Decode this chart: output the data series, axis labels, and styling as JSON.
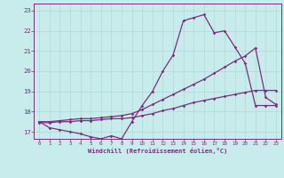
{
  "xlabel": "Windchill (Refroidissement éolien,°C)",
  "bg_color": "#c8ecec",
  "line_color": "#7b2d7b",
  "grid_color": "#b0d8d8",
  "xlim_min": -0.5,
  "xlim_max": 23.5,
  "ylim_min": 16.65,
  "ylim_max": 23.35,
  "x_ticks": [
    0,
    1,
    2,
    3,
    4,
    5,
    6,
    7,
    8,
    9,
    10,
    11,
    12,
    13,
    14,
    15,
    16,
    17,
    18,
    19,
    20,
    21,
    22,
    23
  ],
  "y_ticks": [
    17,
    18,
    19,
    20,
    21,
    22,
    23
  ],
  "line1_x": [
    0,
    1,
    2,
    3,
    4,
    5,
    6,
    7,
    8,
    9,
    10,
    11,
    12,
    13,
    14,
    15,
    16,
    17,
    18,
    19,
    20,
    21,
    22,
    23
  ],
  "line1_y": [
    17.5,
    17.2,
    17.1,
    17.0,
    16.9,
    16.75,
    16.65,
    16.8,
    16.65,
    17.5,
    18.3,
    19.0,
    20.0,
    20.8,
    22.5,
    22.65,
    22.8,
    21.9,
    22.0,
    21.2,
    20.4,
    18.3,
    18.3,
    18.3
  ],
  "line2_x": [
    0,
    1,
    2,
    3,
    4,
    5,
    6,
    7,
    8,
    9,
    10,
    11,
    12,
    13,
    14,
    15,
    16,
    17,
    18,
    19,
    20,
    21,
    22,
    23
  ],
  "line2_y": [
    17.45,
    17.45,
    17.5,
    17.5,
    17.55,
    17.55,
    17.6,
    17.65,
    17.65,
    17.7,
    17.8,
    17.9,
    18.05,
    18.15,
    18.3,
    18.45,
    18.55,
    18.65,
    18.75,
    18.85,
    18.95,
    19.05,
    19.05,
    19.05
  ],
  "line3_x": [
    0,
    1,
    2,
    3,
    4,
    5,
    6,
    7,
    8,
    9,
    10,
    11,
    12,
    13,
    14,
    15,
    16,
    17,
    18,
    19,
    20,
    21,
    22,
    23
  ],
  "line3_y": [
    17.5,
    17.5,
    17.55,
    17.6,
    17.65,
    17.65,
    17.7,
    17.75,
    17.8,
    17.9,
    18.1,
    18.35,
    18.6,
    18.85,
    19.1,
    19.35,
    19.6,
    19.9,
    20.2,
    20.5,
    20.75,
    21.15,
    18.7,
    18.35
  ]
}
